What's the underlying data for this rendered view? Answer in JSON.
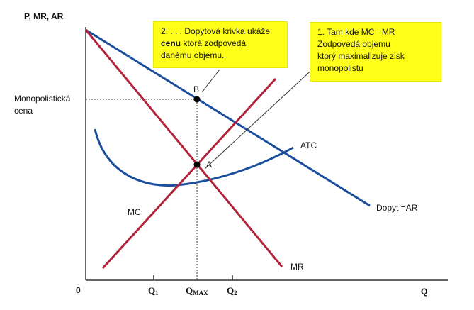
{
  "chart_data": {
    "type": "line",
    "title": "",
    "ylabel": "P, MR, AR",
    "xlabel": "Q",
    "origin_label": "0",
    "x_ticks": [
      {
        "label": "Q",
        "sub": "1",
        "x": 3.2
      },
      {
        "label": "Q",
        "sub": "MAX",
        "x": 5.0
      },
      {
        "label": "Q",
        "sub": "2",
        "x": 6.5
      }
    ],
    "price_label_line1": "Monopolistická",
    "price_label_line2": "cena",
    "xlim": [
      0,
      16
    ],
    "ylim": [
      0,
      12
    ],
    "series": [
      {
        "name": "Dopyt =AR",
        "color": "#1b4f9e",
        "x": [
          0,
          12.6
        ],
        "y": [
          11.5,
          3.2
        ]
      },
      {
        "name": "MR",
        "color": "#b0233a",
        "x": [
          0,
          8.4
        ],
        "y": [
          11.5,
          0.8
        ]
      },
      {
        "name": "MC",
        "color": "#b0233a",
        "x": [
          0.7,
          8.6
        ],
        "y": [
          0.8,
          9.0
        ]
      },
      {
        "name": "ATC",
        "color": "#1b4f9e",
        "x": [
          0.4,
          1.2,
          2.5,
          4.2,
          5.4,
          7.0,
          8.4,
          9.2
        ],
        "y": [
          6.2,
          5.1,
          4.6,
          4.3,
          4.4,
          4.9,
          5.6,
          6.0
        ]
      }
    ],
    "points": [
      {
        "label": "B",
        "x": 5.0,
        "y": 7.8
      },
      {
        "label": "A",
        "x": 5.0,
        "y": 5.1
      }
    ],
    "callouts": [
      {
        "id": "2",
        "parts": {
          "pre": "2. . . . Dopytová krivka ukáže",
          "bold": "cenu",
          "mid": " ktorá  zodpovedá",
          "end": "danému  objemu."
        }
      },
      {
        "id": "1",
        "lines": [
          "1. Tam kde MC =MR",
          "Zodpovedá objemu",
          "ktorý maximalizuje zisk",
          "monopolistu"
        ]
      }
    ],
    "colors": {
      "demand": "#1b4f9e",
      "mr_mc": "#b0233a",
      "callout_bg": "#ffff1a",
      "axis": "#333333"
    }
  }
}
